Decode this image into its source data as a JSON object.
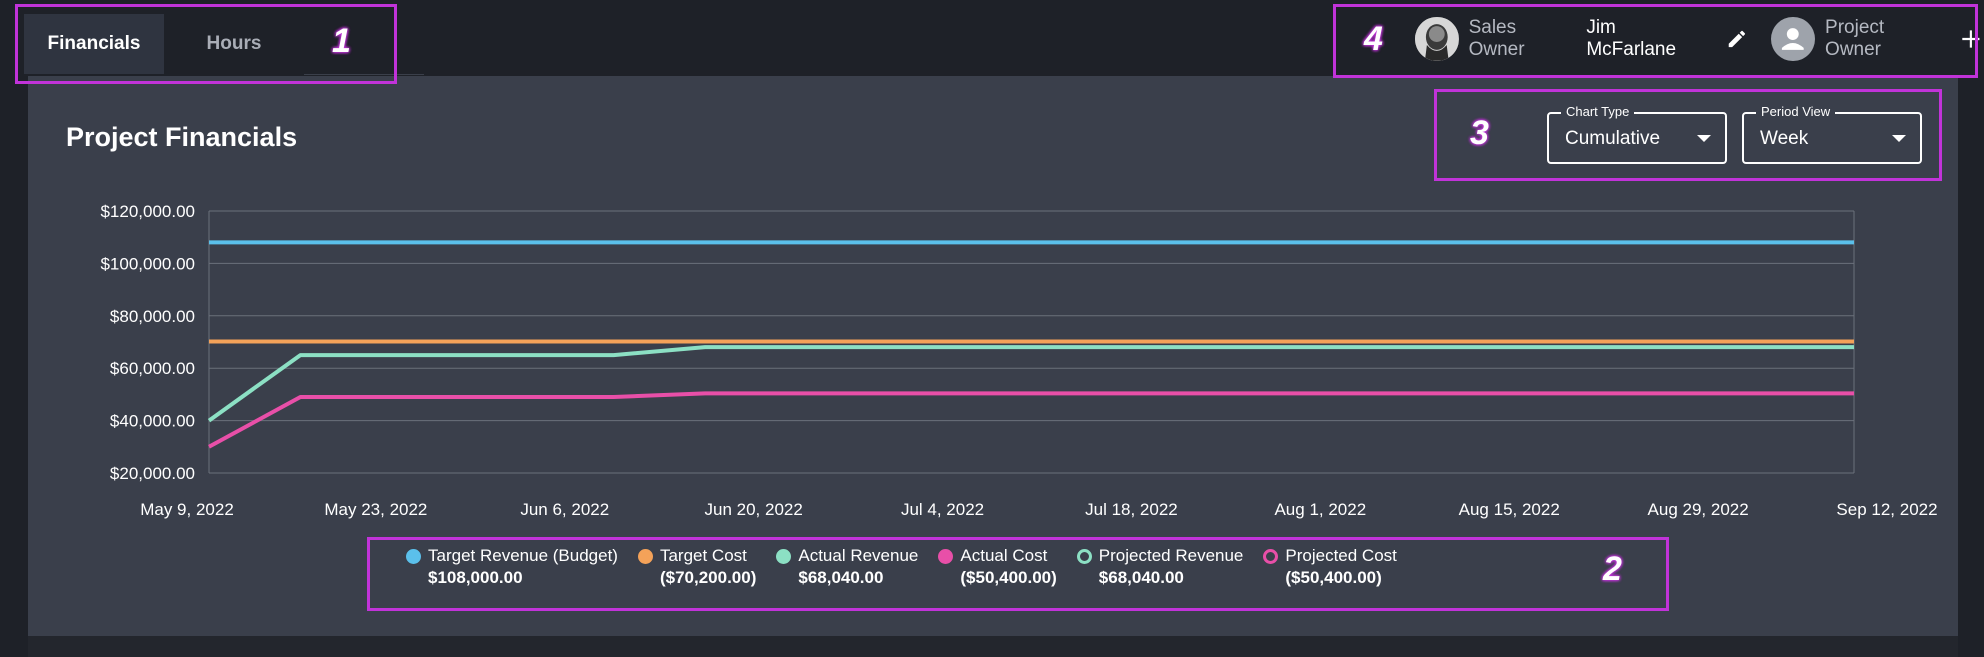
{
  "tabs": [
    {
      "label": "Financials",
      "active": true
    },
    {
      "label": "Hours",
      "active": false
    }
  ],
  "owners": {
    "sales_label": "Sales Owner",
    "sales_name": "Jim McFarlane",
    "project_label": "Project Owner"
  },
  "panel": {
    "title": "Project Financials"
  },
  "controls": {
    "chart_type": {
      "label": "Chart Type",
      "value": "Cumulative"
    },
    "period_view": {
      "label": "Period View",
      "value": "Week"
    }
  },
  "annotations": [
    "1",
    "2",
    "3",
    "4"
  ],
  "chart_data": {
    "type": "line",
    "x": [
      "May 9, 2022",
      "May 23, 2022",
      "Jun 6, 2022",
      "Jun 20, 2022",
      "Jul 4, 2022",
      "Jul 18, 2022",
      "Aug 1, 2022",
      "Aug 15, 2022",
      "Aug 29, 2022",
      "Sep 12, 2022"
    ],
    "x_tick_labels": [
      "May 9, 2022",
      "May 23, 2022",
      "Jun 6, 2022",
      "Jun 20, 2022",
      "Jul 4, 2022",
      "Jul 18, 2022",
      "Aug 1, 2022",
      "Aug 15, 2022",
      "Aug 29, 2022",
      "Sep 12, 2022"
    ],
    "y_tick_labels": [
      "$120,000.00",
      "$100,000.00",
      "$80,000.00",
      "$60,000.00",
      "$40,000.00",
      "$20,000.00"
    ],
    "ylim": [
      20000,
      120000
    ],
    "grid": true,
    "legend_position": "bottom",
    "series": [
      {
        "name": "Target Revenue (Budget)",
        "total": "$108,000.00",
        "color": "#5bc0eb",
        "style": "filled",
        "points": [
          [
            "May 9, 2022",
            108000
          ],
          [
            "Sep 12, 2022",
            108000
          ]
        ]
      },
      {
        "name": "Target Cost",
        "total": "($70,200.00)",
        "color": "#f4a259",
        "style": "filled",
        "points": [
          [
            "May 9, 2022",
            70200
          ],
          [
            "Sep 12, 2022",
            70200
          ]
        ]
      },
      {
        "name": "Actual Revenue",
        "total": "$68,040.00",
        "color": "#8ce0c4",
        "style": "filled",
        "points": [
          [
            "May 9, 2022",
            40000
          ],
          [
            "May 16, 2022",
            65000
          ],
          [
            "Jun 9, 2022",
            65000
          ],
          [
            "Jun 16, 2022",
            68040
          ],
          [
            "Sep 12, 2022",
            68040
          ]
        ]
      },
      {
        "name": "Actual Cost",
        "total": "($50,400.00)",
        "color": "#e84fa8",
        "style": "filled",
        "points": [
          [
            "May 9, 2022",
            30000
          ],
          [
            "May 16, 2022",
            49000
          ],
          [
            "Jun 9, 2022",
            49000
          ],
          [
            "Jun 16, 2022",
            50400
          ],
          [
            "Sep 12, 2022",
            50400
          ]
        ]
      },
      {
        "name": "Projected Revenue",
        "total": "$68,040.00",
        "color": "#8ce0c4",
        "style": "outline",
        "points": [
          [
            "May 9, 2022",
            40000
          ],
          [
            "May 16, 2022",
            65000
          ],
          [
            "Jun 9, 2022",
            65000
          ],
          [
            "Jun 16, 2022",
            68040
          ],
          [
            "Sep 12, 2022",
            68040
          ]
        ]
      },
      {
        "name": "Projected Cost",
        "total": "($50,400.00)",
        "color": "#e84fa8",
        "style": "outline",
        "points": [
          [
            "May 9, 2022",
            30000
          ],
          [
            "May 16, 2022",
            49000
          ],
          [
            "Jun 9, 2022",
            49000
          ],
          [
            "Jun 16, 2022",
            50400
          ],
          [
            "Sep 12, 2022",
            50400
          ]
        ]
      }
    ]
  }
}
